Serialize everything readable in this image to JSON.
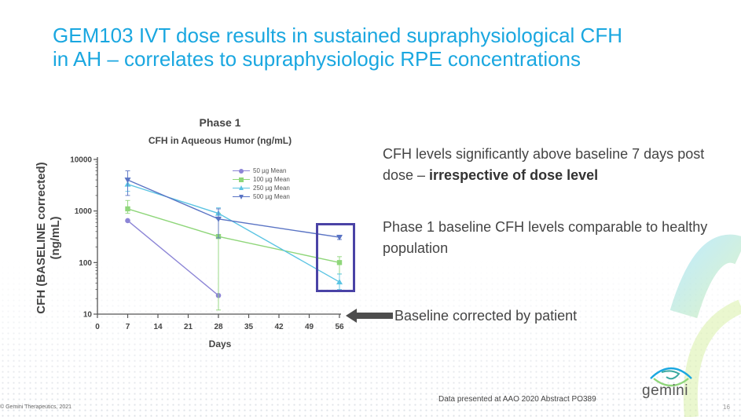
{
  "slide": {
    "title_line1": "GEM103 IVT dose results in sustained supraphysiological CFH",
    "title_line2": "in AH – correlates to supraphysiologic RPE concentrations",
    "accent_color": "#1aa7e0"
  },
  "chart_data": {
    "type": "line",
    "title": "Phase 1",
    "subtitle": "CFH in Aqueous Humor (ng/mL)",
    "xlabel": "Days",
    "ylabel_line1": "CFH (BASELINE corrected)",
    "ylabel_line2": "(ng/mL)",
    "y_scale": "log",
    "ylim": [
      10,
      10000
    ],
    "xlim": [
      0,
      56
    ],
    "x_ticks": [
      0,
      7,
      14,
      21,
      28,
      35,
      42,
      49,
      56
    ],
    "x_tick_labels": [
      "0",
      "7",
      "14",
      "21",
      "28",
      "35",
      "42",
      "49",
      "56"
    ],
    "y_ticks": [
      10,
      100,
      1000,
      10000
    ],
    "y_tick_labels": [
      "10",
      "100",
      "1000",
      "10000"
    ],
    "legend_position": "top-right",
    "series": [
      {
        "name": "50 µg Mean",
        "color": "#8c85d6",
        "marker": "circle",
        "x": [
          7,
          28
        ],
        "y": [
          650,
          23
        ]
      },
      {
        "name": "100 µg Mean",
        "color": "#8fd67a",
        "marker": "square",
        "x": [
          7,
          28,
          56
        ],
        "y": [
          1100,
          320,
          100
        ],
        "err_low": [
          900,
          12,
          60
        ],
        "err_high": [
          1600,
          900,
          130
        ]
      },
      {
        "name": "250 µg Mean",
        "color": "#5bc4e3",
        "marker": "triangle-up",
        "x": [
          7,
          28,
          56
        ],
        "y": [
          3300,
          900,
          42
        ],
        "err_low": [
          2400,
          700,
          30
        ],
        "err_high": [
          4200,
          1150,
          60
        ]
      },
      {
        "name": "500 µg Mean",
        "color": "#5a74c4",
        "marker": "triangle-down",
        "x": [
          7,
          28,
          56
        ],
        "y": [
          4000,
          700,
          310
        ],
        "err_low": [
          2000,
          300,
          280
        ],
        "err_high": [
          6000,
          1100,
          340
        ]
      }
    ]
  },
  "annotations": {
    "baseline_note": "Baseline corrected by patient",
    "highlight_color": "#4a43a6"
  },
  "right_text": {
    "p1_part1": "CFH levels significantly above baseline 7 days post dose – ",
    "p1_bold": "irrespective of dose level",
    "p2": "Phase 1 baseline CFH levels comparable to healthy population"
  },
  "footer": {
    "source_note": "Data presented at AAO 2020 Abstract PO389",
    "copyright": "© Gemini Therapeutics, 2021",
    "page_number": "16",
    "logo_text": "gemini"
  }
}
